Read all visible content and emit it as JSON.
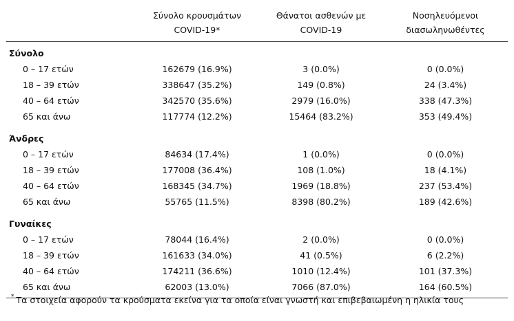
{
  "headers": {
    "c1_line1": "Σύνολο κρουσμάτων",
    "c1_line2": "COVID-19*",
    "c2_line1": "Θάνατοι ασθενών με",
    "c2_line2": "COVID-19",
    "c3_line1": "Νοσηλευόμενοι",
    "c3_line2": "διασωληνωθέντες"
  },
  "groups": [
    {
      "title": "Σύνολο",
      "rows": [
        {
          "age": "0 – 17 ετών",
          "cases": "162679 (16.9%)",
          "deaths": "3 (0.0%)",
          "intubated": "0 (0.0%)"
        },
        {
          "age": "18 – 39 ετών",
          "cases": "338647 (35.2%)",
          "deaths": "149 (0.8%)",
          "intubated": "24 (3.4%)"
        },
        {
          "age": "40 – 64 ετών",
          "cases": "342570 (35.6%)",
          "deaths": "2979 (16.0%)",
          "intubated": "338 (47.3%)"
        },
        {
          "age": "65 και άνω",
          "cases": "117774 (12.2%)",
          "deaths": "15464 (83.2%)",
          "intubated": "353 (49.4%)"
        }
      ]
    },
    {
      "title": "Άνδρες",
      "rows": [
        {
          "age": "0 – 17 ετών",
          "cases": "84634 (17.4%)",
          "deaths": "1 (0.0%)",
          "intubated": "0 (0.0%)"
        },
        {
          "age": "18 – 39 ετών",
          "cases": "177008 (36.4%)",
          "deaths": "108 (1.0%)",
          "intubated": "18 (4.1%)"
        },
        {
          "age": "40 – 64 ετών",
          "cases": "168345 (34.7%)",
          "deaths": "1969 (18.8%)",
          "intubated": "237 (53.4%)"
        },
        {
          "age": "65 και άνω",
          "cases": "55765 (11.5%)",
          "deaths": "8398 (80.2%)",
          "intubated": "189 (42.6%)"
        }
      ]
    },
    {
      "title": "Γυναίκες",
      "rows": [
        {
          "age": "0 – 17 ετών",
          "cases": "78044 (16.4%)",
          "deaths": "2 (0.0%)",
          "intubated": "0 (0.0%)"
        },
        {
          "age": "18 – 39 ετών",
          "cases": "161633 (34.0%)",
          "deaths": "41 (0.5%)",
          "intubated": "6 (2.2%)"
        },
        {
          "age": "40 – 64 ετών",
          "cases": "174211 (36.6%)",
          "deaths": "1010 (12.4%)",
          "intubated": "101 (37.3%)"
        },
        {
          "age": "65 και άνω",
          "cases": "62003 (13.0%)",
          "deaths": "7066 (87.0%)",
          "intubated": "164 (60.5%)"
        }
      ]
    }
  ],
  "footnote": {
    "mark": "*",
    "text": "Τα στοιχεία αφορούν τα κρούσματα εκείνα για τα οποία είναι γνωστή και επιβεβαιωμένη η ηλικία τους"
  }
}
